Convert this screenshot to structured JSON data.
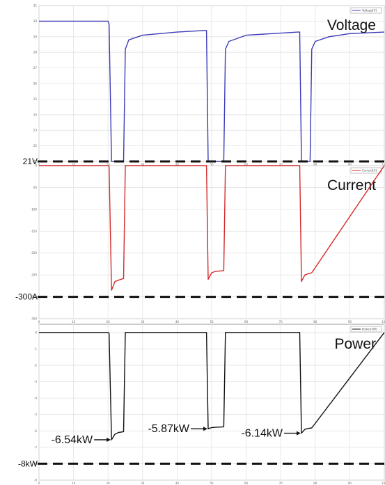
{
  "chart_data": [
    {
      "type": "line",
      "id": "voltage",
      "title": "Voltage",
      "legend": "Voltage[V]",
      "color": "#3b3bb8",
      "x_ticks": [
        0,
        10,
        20,
        30,
        40,
        50,
        60,
        70,
        80,
        90,
        100
      ],
      "xlim": [
        0,
        100
      ],
      "y_ticks": [
        21,
        22,
        23,
        24,
        25,
        26,
        27,
        28,
        29,
        30,
        31
      ],
      "ylim": [
        21,
        31
      ],
      "reference": {
        "value": 21,
        "label": "21V"
      },
      "series": [
        {
          "x": [
            0,
            20,
            20.3,
            21,
            21.5,
            24.5,
            25,
            26,
            30,
            40,
            48,
            48.5,
            49,
            53,
            53.5,
            54,
            55,
            60,
            75,
            75.5,
            76,
            78.5,
            79,
            80,
            84,
            90,
            100
          ],
          "y": [
            30.0,
            30.0,
            29.8,
            21.0,
            21.0,
            21.0,
            28.2,
            28.8,
            29.1,
            29.3,
            29.4,
            29.4,
            21.0,
            21.0,
            21.0,
            28.2,
            28.7,
            29.1,
            29.3,
            29.3,
            21.0,
            21.0,
            28.2,
            28.7,
            29.0,
            29.2,
            29.3
          ]
        }
      ]
    },
    {
      "type": "line",
      "id": "current",
      "title": "Current",
      "legend": "Current[A]",
      "color": "#d22a2a",
      "x_ticks": [
        0,
        10,
        20,
        30,
        40,
        50,
        60,
        70,
        80,
        90,
        100
      ],
      "xlim": [
        0,
        100
      ],
      "y_ticks": [
        0,
        -50,
        -100,
        -150,
        -200,
        -250,
        -300,
        -350
      ],
      "ylim": [
        -350,
        0
      ],
      "reference": {
        "value": -300,
        "label": "-300A"
      },
      "series": [
        {
          "x": [
            0,
            20,
            20.3,
            21,
            22,
            23,
            24.5,
            25,
            48.5,
            49,
            50,
            51,
            53.5,
            54,
            75.5,
            76,
            77,
            78,
            79,
            100
          ],
          "y": [
            0,
            0,
            -2,
            -285,
            -265,
            -262,
            -258,
            0,
            0,
            -260,
            -245,
            -242,
            -240,
            0,
            0,
            -265,
            -250,
            -247,
            -245,
            0
          ]
        }
      ]
    },
    {
      "type": "line",
      "id": "power",
      "title": "Power",
      "legend": "Power[kW]",
      "color": "#111111",
      "x_ticks": [
        0,
        10,
        20,
        30,
        40,
        50,
        60,
        70,
        80,
        90,
        100
      ],
      "xlim": [
        0,
        100
      ],
      "y_ticks": [
        0,
        -1,
        -2,
        -3,
        -4,
        -5,
        -6,
        -7,
        -8,
        -9
      ],
      "ylim": [
        -9,
        0.5
      ],
      "reference": {
        "value": -8,
        "label": "-8kW"
      },
      "annotations": [
        {
          "label": "-6.54kW",
          "x": 21,
          "y": -6.54
        },
        {
          "label": "-5.87kW",
          "x": 49,
          "y": -5.87
        },
        {
          "label": "-6.14kW",
          "x": 76,
          "y": -6.14
        }
      ],
      "series": [
        {
          "x": [
            0,
            20,
            20.3,
            21,
            22,
            23,
            24.5,
            25,
            48.5,
            49,
            50,
            51,
            53.5,
            54,
            75.5,
            76,
            77,
            78,
            79,
            100
          ],
          "y": [
            0,
            0,
            -0.05,
            -6.54,
            -6.2,
            -6.1,
            -6.05,
            0,
            0,
            -5.87,
            -5.8,
            -5.78,
            -5.75,
            0,
            0,
            -6.14,
            -5.9,
            -5.85,
            -5.82,
            0
          ]
        }
      ]
    }
  ]
}
